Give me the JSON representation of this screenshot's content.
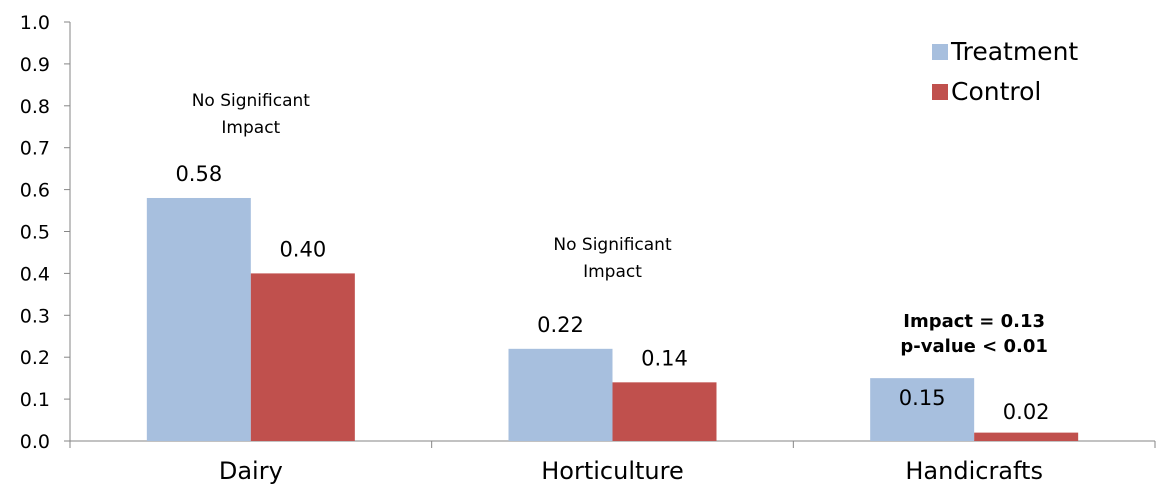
{
  "chart_data": {
    "type": "bar",
    "categories": [
      "Dairy",
      "Horticulture",
      "Handicrafts"
    ],
    "series": [
      {
        "name": "Treatment",
        "color": "#a7bfde",
        "values": [
          0.58,
          0.22,
          0.15
        ],
        "labels": [
          "0.58",
          "0.22",
          "0.15"
        ]
      },
      {
        "name": "Control",
        "color": "#c0504d",
        "values": [
          0.4,
          0.14,
          0.02
        ],
        "labels": [
          "0.40",
          "0.14",
          "0.02"
        ]
      }
    ],
    "ylim": [
      0,
      1.0
    ],
    "yticks": [
      "0.0",
      "0.1",
      "0.2",
      "0.3",
      "0.4",
      "0.5",
      "0.6",
      "0.7",
      "0.8",
      "0.9",
      "1.0"
    ],
    "grid": false,
    "legend_position": "top-right",
    "annotations": [
      {
        "category": "Dairy",
        "lines": [
          "No Significant",
          "Impact"
        ],
        "bold": false
      },
      {
        "category": "Horticulture",
        "lines": [
          "No Significant",
          "Impact"
        ],
        "bold": false
      },
      {
        "category": "Handicrafts",
        "lines": [
          "Impact = 0.13",
          "p-value < 0.01"
        ],
        "bold": true
      }
    ]
  }
}
